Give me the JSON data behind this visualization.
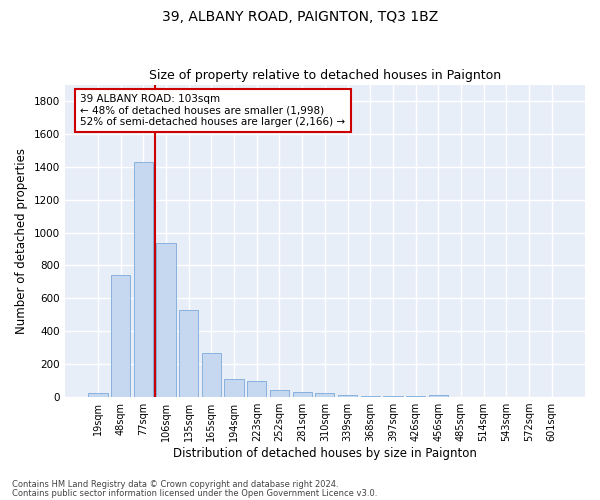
{
  "title": "39, ALBANY ROAD, PAIGNTON, TQ3 1BZ",
  "subtitle": "Size of property relative to detached houses in Paignton",
  "xlabel": "Distribution of detached houses by size in Paignton",
  "ylabel": "Number of detached properties",
  "footer_line1": "Contains HM Land Registry data © Crown copyright and database right 2024.",
  "footer_line2": "Contains public sector information licensed under the Open Government Licence v3.0.",
  "bar_labels": [
    "19sqm",
    "48sqm",
    "77sqm",
    "106sqm",
    "135sqm",
    "165sqm",
    "194sqm",
    "223sqm",
    "252sqm",
    "281sqm",
    "310sqm",
    "339sqm",
    "368sqm",
    "397sqm",
    "426sqm",
    "456sqm",
    "485sqm",
    "514sqm",
    "543sqm",
    "572sqm",
    "601sqm"
  ],
  "bar_values": [
    25,
    740,
    1430,
    935,
    530,
    270,
    110,
    100,
    45,
    28,
    22,
    12,
    5,
    5,
    5,
    14,
    3,
    3,
    3,
    3,
    3
  ],
  "bar_color": "#c5d8f0",
  "bar_edgecolor": "#7aabda",
  "vline_color": "#cc0000",
  "annotation_text": "39 ALBANY ROAD: 103sqm\n← 48% of detached houses are smaller (1,998)\n52% of semi-detached houses are larger (2,166) →",
  "annotation_box_color": "#cc0000",
  "ylim": [
    0,
    1900
  ],
  "yticks": [
    0,
    200,
    400,
    600,
    800,
    1000,
    1200,
    1400,
    1600,
    1800
  ],
  "background_color": "#ffffff",
  "plot_bg_color": "#e8eef8",
  "grid_color": "#ffffff",
  "title_fontsize": 10,
  "subtitle_fontsize": 9,
  "tick_fontsize": 7,
  "label_fontsize": 8.5
}
